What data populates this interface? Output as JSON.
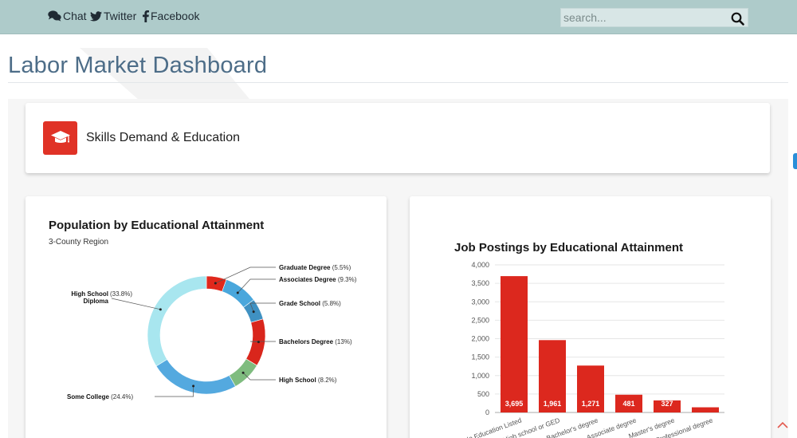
{
  "nav": {
    "links": [
      {
        "label": "Chat",
        "icon": "chat-icon"
      },
      {
        "label": "Twitter",
        "icon": "twitter-icon"
      },
      {
        "label": "Facebook",
        "icon": "facebook-icon"
      }
    ],
    "search": {
      "placeholder": "search...",
      "value": "",
      "icon": "search-icon"
    }
  },
  "page": {
    "title": "Labor Market Dashboard"
  },
  "section": {
    "title": "Skills Demand & Education",
    "icon": "graduation-cap-icon",
    "icon_color": "#e03226"
  },
  "chart_data": [
    {
      "type": "pie",
      "title": "Population by Educational Attainment",
      "subtitle": "3-County Region",
      "slices": [
        {
          "label": "Graduate Degree",
          "value": 5.5,
          "pct_label": "(5.5%)",
          "color": "#e0281c"
        },
        {
          "label": "Associates Degree",
          "value": 9.3,
          "pct_label": "(9.3%)",
          "color": "#4aa7dc"
        },
        {
          "label": "Grade School",
          "value": 5.8,
          "pct_label": "(5.8%)",
          "color": "#3f91c2"
        },
        {
          "label": "Bachelors Degree",
          "value": 13,
          "pct_label": "(13%)",
          "color": "#d9261c"
        },
        {
          "label": "High School",
          "value": 8.2,
          "pct_label": "(8.2%)",
          "color": "#7fbc7f"
        },
        {
          "label": "Some College",
          "value": 24.4,
          "pct_label": "(24.4%)",
          "color": "#54a9df"
        },
        {
          "label": "High School Diploma",
          "value": 33.8,
          "pct_label": "(33.8%)",
          "color": "#a8e6ef"
        }
      ]
    },
    {
      "type": "bar",
      "title": "Job Postings by Educational Attainment",
      "categories": [
        "No Education Listed",
        "High school or GED",
        "Bachelor's degree",
        "Associate degree",
        "Master's degree",
        "Professional degree"
      ],
      "values": [
        3695,
        1961,
        1271,
        481,
        327,
        140
      ],
      "value_labels": [
        "3,695",
        "1,961",
        "1,271",
        "481",
        "327",
        ""
      ],
      "ylim": [
        0,
        4000
      ],
      "yticks": [
        "0",
        "500",
        "1,000",
        "1,500",
        "2,000",
        "2,500",
        "3,000",
        "3,500",
        "4,000"
      ],
      "grid": true,
      "bar_color": "#dc281e"
    }
  ]
}
